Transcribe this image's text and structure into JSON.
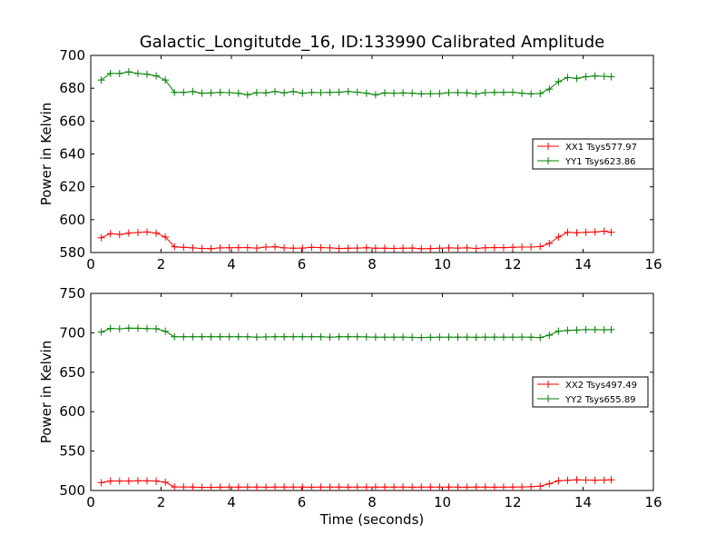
{
  "title": "Galactic_Longitutde_16, ID:133990 Calibrated Amplitude",
  "xlabel": "Time (seconds)",
  "chart_data": [
    {
      "type": "line",
      "ylabel": "Power in Kelvin",
      "xlim": [
        0,
        16
      ],
      "ylim": [
        580,
        700
      ],
      "xticks": [
        0,
        2,
        4,
        6,
        8,
        10,
        12,
        14,
        16
      ],
      "yticks": [
        580,
        600,
        620,
        640,
        660,
        680,
        700
      ],
      "legend_position": "center-right",
      "grid": false,
      "x": [
        0.3,
        0.56,
        0.82,
        1.08,
        1.34,
        1.6,
        1.86,
        2.12,
        2.38,
        2.64,
        2.9,
        3.16,
        3.42,
        3.68,
        3.94,
        4.2,
        4.46,
        4.72,
        4.98,
        5.24,
        5.5,
        5.76,
        6.02,
        6.28,
        6.54,
        6.8,
        7.06,
        7.32,
        7.58,
        7.84,
        8.1,
        8.36,
        8.62,
        8.88,
        9.14,
        9.4,
        9.66,
        9.92,
        10.18,
        10.44,
        10.7,
        10.96,
        11.22,
        11.48,
        11.74,
        12.0,
        12.26,
        12.52,
        12.78,
        13.04,
        13.3,
        13.56,
        13.82,
        14.08,
        14.34,
        14.6,
        14.8
      ],
      "series": [
        {
          "name": "XX1 Tsys577.97",
          "color": "#ff0000",
          "values": [
            589,
            591.5,
            591,
            591.8,
            592.2,
            592.5,
            591.8,
            589.5,
            583.5,
            583.2,
            582.8,
            582.5,
            582.3,
            582.8,
            582.9,
            583,
            583,
            582.7,
            583.3,
            583.5,
            582.8,
            582.6,
            582.7,
            583.2,
            583,
            582.8,
            582.5,
            582.6,
            582.7,
            582.9,
            582.6,
            582.6,
            582.5,
            582.6,
            582.7,
            582.3,
            582.4,
            582.6,
            582.8,
            582.7,
            582.8,
            582.5,
            582.9,
            583,
            583,
            583.2,
            583.3,
            583.3,
            583.6,
            585.5,
            589.5,
            592.3,
            592,
            592.3,
            592.5,
            593,
            592.3
          ]
        },
        {
          "name": "YY1 Tsys623.86",
          "color": "#008000",
          "values": [
            685,
            689,
            689,
            690,
            689,
            688.5,
            687.5,
            685,
            677.5,
            677.5,
            678,
            677,
            677.2,
            677.5,
            677.3,
            677,
            676,
            677.3,
            677.2,
            678,
            677.2,
            678,
            677,
            677.5,
            677.3,
            677.5,
            677.6,
            678,
            677.6,
            677,
            676,
            677.2,
            677,
            677.2,
            677,
            676.6,
            676.7,
            676.7,
            677.3,
            677.4,
            677.2,
            676.5,
            677.3,
            677.5,
            677.5,
            677.6,
            677,
            676.6,
            676.8,
            679.5,
            684,
            686.5,
            686,
            687,
            687.5,
            687.3,
            687
          ]
        }
      ]
    },
    {
      "type": "line",
      "ylabel": "Power in Kelvin",
      "xlim": [
        0,
        16
      ],
      "ylim": [
        500,
        750
      ],
      "xticks": [
        0,
        2,
        4,
        6,
        8,
        10,
        12,
        14,
        16
      ],
      "yticks": [
        500,
        550,
        600,
        650,
        700,
        750
      ],
      "legend_position": "center-right",
      "grid": false,
      "x": [
        0.3,
        0.56,
        0.82,
        1.08,
        1.34,
        1.6,
        1.86,
        2.12,
        2.38,
        2.64,
        2.9,
        3.16,
        3.42,
        3.68,
        3.94,
        4.2,
        4.46,
        4.72,
        4.98,
        5.24,
        5.5,
        5.76,
        6.02,
        6.28,
        6.54,
        6.8,
        7.06,
        7.32,
        7.58,
        7.84,
        8.1,
        8.36,
        8.62,
        8.88,
        9.14,
        9.4,
        9.66,
        9.92,
        10.18,
        10.44,
        10.7,
        10.96,
        11.22,
        11.48,
        11.74,
        12.0,
        12.26,
        12.52,
        12.78,
        13.04,
        13.3,
        13.56,
        13.82,
        14.08,
        14.34,
        14.6,
        14.8
      ],
      "series": [
        {
          "name": "XX2 Tsys497.49",
          "color": "#ff0000",
          "values": [
            510,
            512,
            512,
            512,
            512.3,
            512.3,
            512,
            510.5,
            504.5,
            504.5,
            504.3,
            504,
            504,
            504.2,
            504.3,
            504.3,
            504.3,
            504.3,
            504.2,
            504.3,
            504.3,
            504.3,
            504.3,
            504.2,
            504.3,
            504.3,
            504.3,
            504.2,
            504.3,
            504.3,
            504.3,
            504.3,
            504.3,
            504.3,
            504.2,
            504.3,
            504.3,
            504.3,
            504.3,
            504.3,
            504.2,
            504.3,
            504.3,
            504.2,
            504.3,
            504.3,
            504.5,
            504.8,
            505.5,
            508.5,
            512.3,
            513,
            513.5,
            513.3,
            513,
            513.3,
            513.5
          ]
        },
        {
          "name": "YY2 Tsys655.89",
          "color": "#008000",
          "values": [
            701,
            705.5,
            705,
            706,
            705.8,
            705.3,
            705.2,
            702,
            695,
            695,
            695,
            695,
            695,
            695,
            695,
            695,
            695,
            694.5,
            694.8,
            695,
            695,
            695,
            695,
            695,
            695,
            694.5,
            695,
            695,
            695,
            694.8,
            694.5,
            694.5,
            694.5,
            694.6,
            694.2,
            694,
            694.3,
            694.5,
            694.5,
            694.5,
            694.5,
            694.3,
            694.5,
            694.5,
            694.5,
            694.5,
            694.6,
            694.5,
            694,
            697,
            702,
            703,
            703.5,
            704,
            704,
            703.8,
            704
          ]
        }
      ]
    }
  ]
}
